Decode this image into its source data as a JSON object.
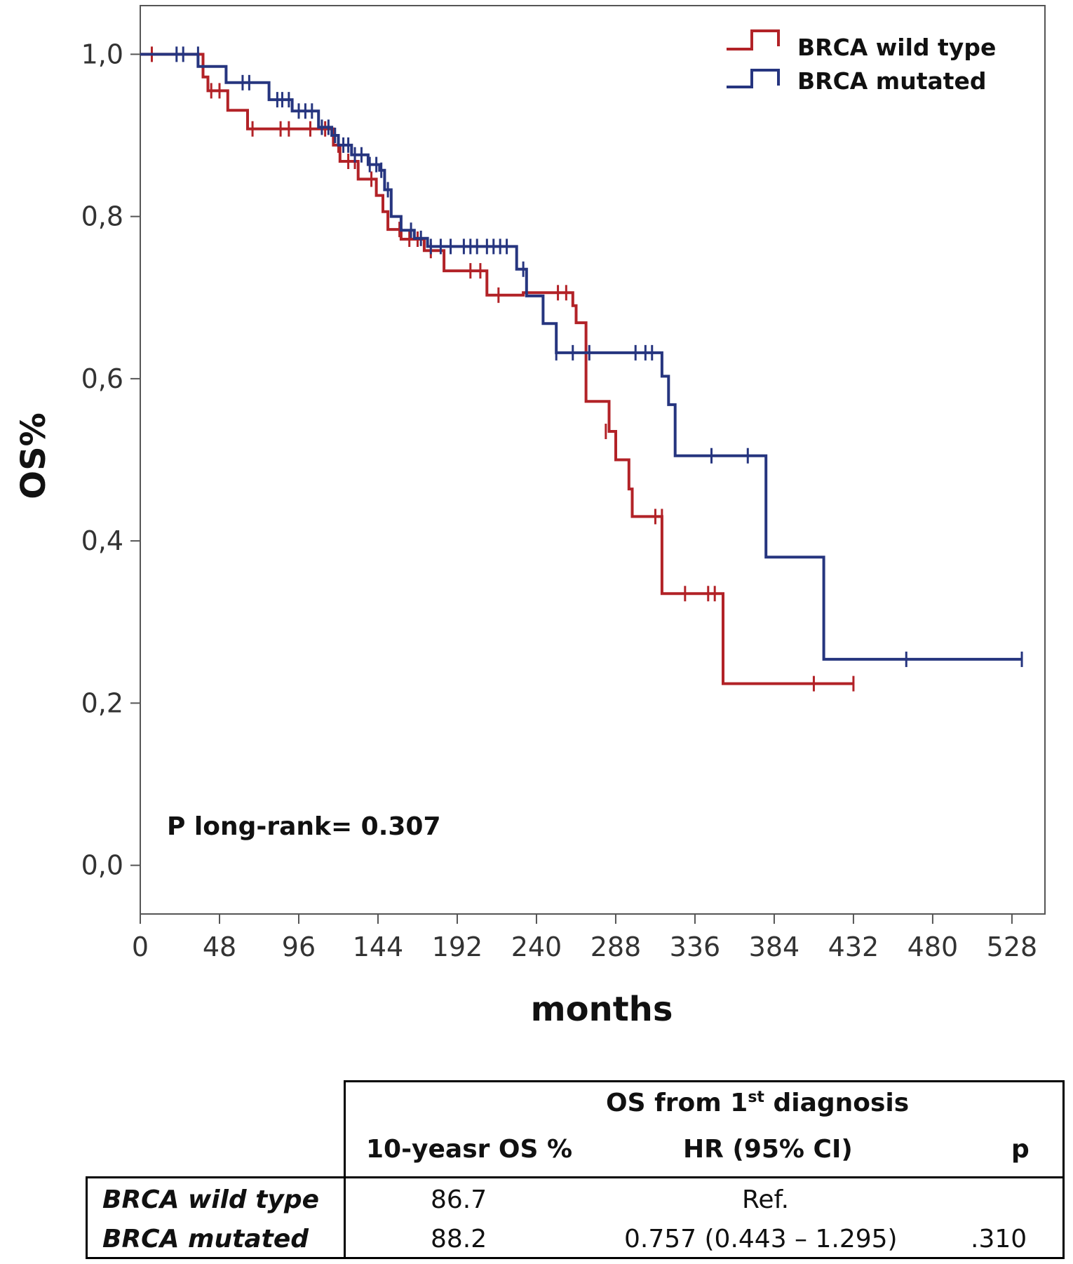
{
  "chart_data": {
    "type": "line",
    "subtype": "kaplan-meier-step",
    "title": "",
    "xlabel": "months",
    "ylabel": "OS%",
    "xlim": [
      0,
      548
    ],
    "ylim": [
      -0.06,
      1.06
    ],
    "xticks": [
      0,
      48,
      96,
      144,
      192,
      240,
      288,
      336,
      384,
      432,
      480,
      528
    ],
    "yticks": [
      0.0,
      0.2,
      0.4,
      0.6,
      0.8,
      1.0
    ],
    "ytick_labels": [
      "0,0",
      "0,2",
      "0,4",
      "0,6",
      "0,8",
      "1,0"
    ],
    "legend_position": "top-right",
    "annotation": "P long-rank= 0.307",
    "series": [
      {
        "name": "BRCA wild type",
        "color": "#b22227",
        "steps": [
          [
            0,
            1.0
          ],
          [
            38,
            0.972
          ],
          [
            41,
            0.955
          ],
          [
            53,
            0.931
          ],
          [
            65,
            0.908
          ],
          [
            117,
            0.888
          ],
          [
            121,
            0.868
          ],
          [
            132,
            0.846
          ],
          [
            143,
            0.826
          ],
          [
            147,
            0.806
          ],
          [
            150,
            0.784
          ],
          [
            158,
            0.772
          ],
          [
            172,
            0.758
          ],
          [
            184,
            0.733
          ],
          [
            210,
            0.703
          ],
          [
            232,
            0.706
          ],
          [
            262,
            0.69
          ],
          [
            264,
            0.669
          ],
          [
            270,
            0.572
          ],
          [
            284,
            0.535
          ],
          [
            288,
            0.5
          ],
          [
            296,
            0.464
          ],
          [
            298,
            0.43
          ],
          [
            316,
            0.335
          ],
          [
            353,
            0.224
          ],
          [
            432,
            0.224
          ]
        ],
        "censored": [
          [
            7,
            1.0
          ],
          [
            43,
            0.955
          ],
          [
            48,
            0.955
          ],
          [
            68,
            0.908
          ],
          [
            85,
            0.908
          ],
          [
            90,
            0.908
          ],
          [
            103,
            0.908
          ],
          [
            112,
            0.908
          ],
          [
            120,
            0.888
          ],
          [
            126,
            0.868
          ],
          [
            130,
            0.868
          ],
          [
            140,
            0.846
          ],
          [
            157,
            0.784
          ],
          [
            163,
            0.772
          ],
          [
            168,
            0.772
          ],
          [
            176,
            0.758
          ],
          [
            200,
            0.733
          ],
          [
            206,
            0.733
          ],
          [
            217,
            0.703
          ],
          [
            253,
            0.706
          ],
          [
            258,
            0.706
          ],
          [
            282,
            0.535
          ],
          [
            312,
            0.43
          ],
          [
            316,
            0.43
          ],
          [
            330,
            0.335
          ],
          [
            344,
            0.335
          ],
          [
            348,
            0.335
          ],
          [
            408,
            0.224
          ],
          [
            432,
            0.224
          ]
        ]
      },
      {
        "name": "BRCA mutated",
        "color": "#26357f",
        "steps": [
          [
            0,
            1.0
          ],
          [
            35,
            0.985
          ],
          [
            52,
            0.965
          ],
          [
            78,
            0.944
          ],
          [
            92,
            0.93
          ],
          [
            108,
            0.91
          ],
          [
            116,
            0.9
          ],
          [
            120,
            0.888
          ],
          [
            128,
            0.876
          ],
          [
            138,
            0.864
          ],
          [
            145,
            0.857
          ],
          [
            148,
            0.833
          ],
          [
            152,
            0.8
          ],
          [
            158,
            0.783
          ],
          [
            166,
            0.773
          ],
          [
            174,
            0.763
          ],
          [
            228,
            0.735
          ],
          [
            234,
            0.702
          ],
          [
            244,
            0.668
          ],
          [
            252,
            0.632
          ],
          [
            316,
            0.603
          ],
          [
            320,
            0.568
          ],
          [
            324,
            0.505
          ],
          [
            379,
            0.38
          ],
          [
            414,
            0.254
          ],
          [
            534,
            0.254
          ]
        ],
        "censored": [
          [
            22,
            1.0
          ],
          [
            26,
            1.0
          ],
          [
            35,
            1.0
          ],
          [
            62,
            0.965
          ],
          [
            66,
            0.965
          ],
          [
            83,
            0.944
          ],
          [
            86,
            0.944
          ],
          [
            90,
            0.944
          ],
          [
            96,
            0.93
          ],
          [
            100,
            0.93
          ],
          [
            104,
            0.93
          ],
          [
            110,
            0.91
          ],
          [
            114,
            0.91
          ],
          [
            118,
            0.9
          ],
          [
            123,
            0.888
          ],
          [
            126,
            0.888
          ],
          [
            130,
            0.876
          ],
          [
            134,
            0.876
          ],
          [
            139,
            0.864
          ],
          [
            143,
            0.864
          ],
          [
            146,
            0.857
          ],
          [
            150,
            0.833
          ],
          [
            164,
            0.783
          ],
          [
            170,
            0.773
          ],
          [
            176,
            0.763
          ],
          [
            182,
            0.763
          ],
          [
            188,
            0.763
          ],
          [
            196,
            0.763
          ],
          [
            200,
            0.763
          ],
          [
            204,
            0.763
          ],
          [
            210,
            0.763
          ],
          [
            214,
            0.763
          ],
          [
            218,
            0.763
          ],
          [
            222,
            0.763
          ],
          [
            232,
            0.735
          ],
          [
            252,
            0.632
          ],
          [
            262,
            0.632
          ],
          [
            272,
            0.632
          ],
          [
            300,
            0.632
          ],
          [
            306,
            0.632
          ],
          [
            310,
            0.632
          ],
          [
            346,
            0.505
          ],
          [
            368,
            0.505
          ],
          [
            464,
            0.254
          ],
          [
            534,
            0.254
          ]
        ]
      }
    ]
  },
  "table": {
    "group_header": "OS from 1",
    "group_header_sup": "st",
    "group_header_tail": " diagnosis",
    "columns": [
      "10-yeasr OS %",
      "HR (95% CI)",
      "p"
    ],
    "rows": [
      {
        "label": "BRCA wild type",
        "os10": "86.7",
        "hr": "Ref.",
        "p": ""
      },
      {
        "label": "BRCA mutated",
        "os10": "88.2",
        "hr": "0.757 (0.443 – 1.295)",
        "p": ".310"
      }
    ]
  }
}
